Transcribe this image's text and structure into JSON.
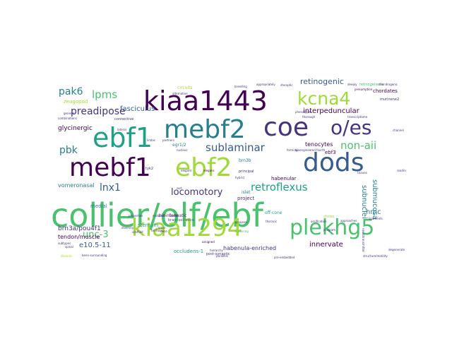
{
  "palette": [
    "#440154",
    "#46327e",
    "#365c8d",
    "#277f8e",
    "#1fa187",
    "#4ac16d",
    "#a0da39",
    "#fde725"
  ],
  "words": [
    {
      "text": "collier/olf/ebf",
      "weight": 1.0,
      "color": "#4ac16d",
      "vertical": false
    },
    {
      "text": "kiaa1443",
      "weight": 0.82,
      "color": "#440154",
      "vertical": false
    },
    {
      "text": "mebf2",
      "weight": 0.78,
      "color": "#277f8e",
      "vertical": false
    },
    {
      "text": "ebf2",
      "weight": 0.76,
      "color": "#a0da39",
      "vertical": false
    },
    {
      "text": "coe",
      "weight": 0.7,
      "color": "#46327e",
      "vertical": false
    },
    {
      "text": "dods",
      "weight": 0.7,
      "color": "#365c8d",
      "vertical": false
    },
    {
      "text": "ebf1",
      "weight": 0.68,
      "color": "#1fa187",
      "vertical": false
    },
    {
      "text": "mebf1",
      "weight": 0.66,
      "color": "#440154",
      "vertical": false
    },
    {
      "text": "kiaa1294",
      "weight": 0.64,
      "color": "#a0da39",
      "vertical": false
    },
    {
      "text": "plekhg5",
      "weight": 0.56,
      "color": "#4ac16d",
      "vertical": false
    },
    {
      "text": "o/es",
      "weight": 0.54,
      "color": "#46327e",
      "vertical": false
    },
    {
      "text": "kcna4",
      "weight": 0.48,
      "color": "#a0da39",
      "vertical": false
    },
    {
      "text": "sublaminar",
      "weight": 0.28,
      "color": "#365c8d",
      "vertical": false
    },
    {
      "text": "retroflexus",
      "weight": 0.28,
      "color": "#1fa187",
      "vertical": false
    },
    {
      "text": "non-aii",
      "weight": 0.26,
      "color": "#4ac16d",
      "vertical": false
    },
    {
      "text": "lpms",
      "weight": 0.24,
      "color": "#4ac16d",
      "vertical": false
    },
    {
      "text": "pak6",
      "weight": 0.22,
      "color": "#277f8e",
      "vertical": false
    },
    {
      "text": "preadipose",
      "weight": 0.22,
      "color": "#46327e",
      "vertical": false
    },
    {
      "text": "pbk",
      "weight": 0.22,
      "color": "#277f8e",
      "vertical": false
    },
    {
      "text": "lnx1",
      "weight": 0.22,
      "color": "#365c8d",
      "vertical": false
    },
    {
      "text": "locomotory",
      "weight": 0.2,
      "color": "#46327e",
      "vertical": false
    },
    {
      "text": "unc-3",
      "weight": 0.2,
      "color": "#4ac16d",
      "vertical": false
    },
    {
      "text": "retinogenic",
      "weight": 0.17,
      "color": "#365c8d",
      "vertical": false
    },
    {
      "text": "interpeduncular",
      "weight": 0.15,
      "color": "#440154",
      "vertical": false
    },
    {
      "text": "fasciculus",
      "weight": 0.15,
      "color": "#365c8d",
      "vertical": false
    },
    {
      "text": "innervate",
      "weight": 0.15,
      "color": "#440154",
      "vertical": false
    },
    {
      "text": "e10.5-11",
      "weight": 0.15,
      "color": "#365c8d",
      "vertical": false
    },
    {
      "text": "hmc",
      "weight": 0.14,
      "color": "#277f8e",
      "vertical": false
    },
    {
      "text": "glycinergic",
      "weight": 0.13,
      "color": "#440154",
      "vertical": false
    },
    {
      "text": "brn3a/pou4f1",
      "weight": 0.12,
      "color": "#46327e",
      "vertical": false
    },
    {
      "text": "tenocytes",
      "weight": 0.12,
      "color": "#440154",
      "vertical": false
    },
    {
      "text": "vomeronasal",
      "weight": 0.11,
      "color": "#277f8e",
      "vertical": false
    },
    {
      "text": "tendon/muscle",
      "weight": 0.11,
      "color": "#440154",
      "vertical": false
    },
    {
      "text": "habenula-enriched",
      "weight": 0.1,
      "color": "#46327e",
      "vertical": false
    },
    {
      "text": "chordates",
      "weight": 0.1,
      "color": "#440154",
      "vertical": false
    },
    {
      "text": "habenular",
      "weight": 0.1,
      "color": "#440154",
      "vertical": false
    },
    {
      "text": "ebf3",
      "weight": 0.1,
      "color": "#440154",
      "vertical": false
    },
    {
      "text": "medial",
      "weight": 0.1,
      "color": "#277f8e",
      "vertical": false
    },
    {
      "text": "sternum",
      "weight": 0.1,
      "color": "#1fa187",
      "vertical": false
    },
    {
      "text": "zeugopod",
      "weight": 0.09,
      "color": "#a0da39",
      "vertical": false
    },
    {
      "text": "occludens-1",
      "weight": 0.09,
      "color": "#1fa187",
      "vertical": false
    },
    {
      "text": "project",
      "weight": 0.09,
      "color": "#46327e",
      "vertical": false
    },
    {
      "text": "islet",
      "weight": 0.08,
      "color": "#277f8e",
      "vertical": false
    },
    {
      "text": "off-cone",
      "weight": 0.08,
      "color": "#1fa187",
      "vertical": false
    },
    {
      "text": "brn3b",
      "weight": 0.08,
      "color": "#277f8e",
      "vertical": false
    },
    {
      "text": "bioinformatic",
      "weight": 0.08,
      "color": "#46327e",
      "vertical": false
    },
    {
      "text": "submucosa",
      "weight": 0.1,
      "color": "#277f8e",
      "vertical": true
    },
    {
      "text": "subnuclei",
      "weight": 0.1,
      "color": "#277f8e",
      "vertical": true
    },
    {
      "text": "egr1/2",
      "weight": 0.07,
      "color": "#277f8e",
      "vertical": false
    },
    {
      "text": "tyk2",
      "weight": 0.07,
      "color": "#46327e",
      "vertical": false
    },
    {
      "text": "circuits",
      "weight": 0.06,
      "color": "#a0da39",
      "vertical": false
    },
    {
      "text": "retinogenesis",
      "weight": 0.06,
      "color": "#4ac16d",
      "vertical": false
    },
    {
      "text": "brain-selective",
      "weight": 0.06,
      "color": "#365c8d",
      "vertical": false
    },
    {
      "text": "post-synaptic",
      "weight": 0.06,
      "color": "#46327e",
      "vertical": false
    },
    {
      "text": "connective",
      "weight": 0.06,
      "color": "#46327e",
      "vertical": false
    },
    {
      "text": "principal",
      "weight": 0.06,
      "color": "#46327e",
      "vertical": false
    },
    {
      "text": "hybrid",
      "weight": 0.05,
      "color": "#46327e",
      "vertical": false
    },
    {
      "text": "bodies",
      "weight": 0.05,
      "color": "#440154",
      "vertical": false
    },
    {
      "text": "ossification",
      "weight": 0.05,
      "color": "#46327e",
      "vertical": false
    },
    {
      "text": "assigned",
      "weight": 0.05,
      "color": "#440154",
      "vertical": false
    },
    {
      "text": "structure/motility",
      "weight": 0.05,
      "color": "#46327e",
      "vertical": false
    },
    {
      "text": "pre-embedded",
      "weight": 0.05,
      "color": "#46327e",
      "vertical": false
    },
    {
      "text": "hierarchy",
      "weight": 0.05,
      "color": "#46327e",
      "vertical": false
    },
    {
      "text": "clustering",
      "weight": 0.05,
      "color": "#4ac16d",
      "vertical": false
    },
    {
      "text": "neurotransmitter",
      "weight": 0.05,
      "color": "#46327e",
      "vertical": true
    },
    {
      "text": "elegans",
      "weight": 0.05,
      "color": "#440154",
      "vertical": false
    },
    {
      "text": "mice",
      "weight": 0.05,
      "color": "#440154",
      "vertical": false
    },
    {
      "text": "shows",
      "weight": 0.05,
      "color": "#a0da39",
      "vertical": false
    },
    {
      "text": "program",
      "weight": 0.04,
      "color": "#46327e",
      "vertical": false
    },
    {
      "text": "approaches",
      "weight": 0.04,
      "color": "#46327e",
      "vertical": false
    },
    {
      "text": "ligaments",
      "weight": 0.04,
      "color": "#46327e",
      "vertical": false
    },
    {
      "text": "diversity",
      "weight": 0.04,
      "color": "#46327e",
      "vertical": false
    },
    {
      "text": "subtypes",
      "weight": 0.04,
      "color": "#46327e",
      "vertical": false
    },
    {
      "text": "libraries",
      "weight": 0.04,
      "color": "#a0da39",
      "vertical": false
    },
    {
      "text": "been-surrounding",
      "weight": 0.04,
      "color": "#46327e",
      "vertical": false
    },
    {
      "text": "scaffold",
      "weight": 0.04,
      "color": "#46327e",
      "vertical": false
    },
    {
      "text": "territory",
      "weight": 0.04,
      "color": "#46327e",
      "vertical": false
    },
    {
      "text": "thoracic",
      "weight": 0.04,
      "color": "#46327e",
      "vertical": false
    },
    {
      "text": "nucleus",
      "weight": 0.04,
      "color": "#46327e",
      "vertical": false
    },
    {
      "text": "synapses",
      "weight": 0.04,
      "color": "#46327e",
      "vertical": false
    },
    {
      "text": "forming",
      "weight": 0.04,
      "color": "#46327e",
      "vertical": false
    },
    {
      "text": "partners",
      "weight": 0.04,
      "color": "#46327e",
      "vertical": false
    },
    {
      "text": "breeding",
      "weight": 0.04,
      "color": "#46327e",
      "vertical": false
    },
    {
      "text": "appropriately",
      "weight": 0.04,
      "color": "#46327e",
      "vertical": false
    },
    {
      "text": "steroptic",
      "weight": 0.04,
      "color": "#46327e",
      "vertical": false
    },
    {
      "text": "presumption",
      "weight": 0.04,
      "color": "#440154",
      "vertical": false
    },
    {
      "text": "chondrogenic",
      "weight": 0.04,
      "color": "#46327e",
      "vertical": false
    },
    {
      "text": "murinene2",
      "weight": 0.04,
      "color": "#46327e",
      "vertical": false
    },
    {
      "text": "transcriptome",
      "weight": 0.04,
      "color": "#46327e",
      "vertical": false
    },
    {
      "text": "general",
      "weight": 0.04,
      "color": "#46327e",
      "vertical": false
    },
    {
      "text": "combinations",
      "weight": 0.04,
      "color": "#46327e",
      "vertical": false
    },
    {
      "text": "phenotypes",
      "weight": 0.04,
      "color": "#46327e",
      "vertical": false
    },
    {
      "text": "thorough",
      "weight": 0.04,
      "color": "#46327e",
      "vertical": false
    },
    {
      "text": "bioengineered fourth",
      "weight": 0.04,
      "color": "#46327e",
      "vertical": false
    },
    {
      "text": "cross",
      "weight": 0.04,
      "color": "#46327e",
      "vertical": false
    },
    {
      "text": "spinal",
      "weight": 0.04,
      "color": "#46327e",
      "vertical": false
    },
    {
      "text": "tissues",
      "weight": 0.04,
      "color": "#46327e",
      "vertical": false
    },
    {
      "text": "lateral",
      "weight": 0.04,
      "color": "#46327e",
      "vertical": false
    },
    {
      "text": "limbic",
      "weight": 0.04,
      "color": "#46327e",
      "vertical": false
    },
    {
      "text": "properties",
      "weight": 0.04,
      "color": "#46327e",
      "vertical": false
    },
    {
      "text": "midbrain",
      "weight": 0.04,
      "color": "#46327e",
      "vertical": false
    },
    {
      "text": "degenerate",
      "weight": 0.04,
      "color": "#46327e",
      "vertical": false
    },
    {
      "text": "reading",
      "weight": 0.04,
      "color": "#46327e",
      "vertical": false
    },
    {
      "text": "channel",
      "weight": 0.04,
      "color": "#46327e",
      "vertical": false
    },
    {
      "text": "deeply",
      "weight": 0.04,
      "color": "#46327e",
      "vertical": false
    },
    {
      "text": "sert",
      "weight": 0.04,
      "color": "#46327e",
      "vertical": false
    },
    {
      "text": "elegant",
      "weight": 0.04,
      "color": "#46327e",
      "vertical": false
    },
    {
      "text": "parallels",
      "weight": 0.04,
      "color": "#46327e",
      "vertical": false
    },
    {
      "text": "alternative",
      "weight": 0.04,
      "color": "#46327e",
      "vertical": false
    }
  ]
}
